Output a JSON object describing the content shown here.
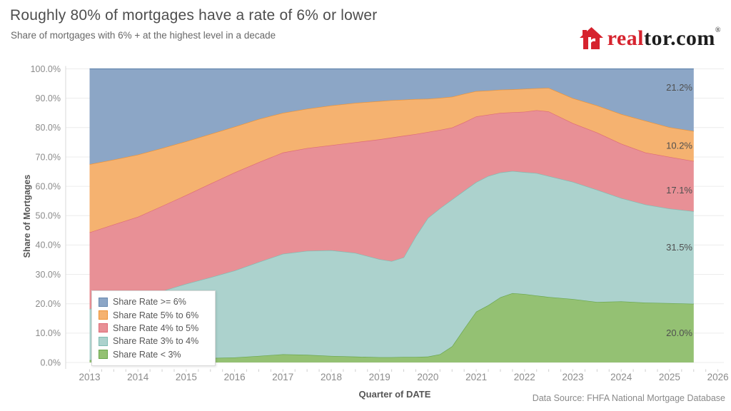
{
  "header": {
    "title": "Roughly 80% of mortgages have a rate of 6% or lower",
    "subtitle": "Share of mortgages with 6% + at the highest level in a decade",
    "logo": {
      "text_red": "real",
      "text_dark": "tor.com",
      "registered_mark": "®",
      "brand_red": "#d6232e",
      "house_icon": "red house glyph"
    }
  },
  "chart_data": {
    "type": "area",
    "stacked": "percent",
    "title": "Roughly 80% of mortgages have a rate of 6% or lower",
    "subtitle": "Share of mortgages with 6% + at the highest level in a decade",
    "xlabel": "Quarter of DATE",
    "ylabel": "Share of Mortgages",
    "ylim": [
      0,
      100
    ],
    "ytick_step": 10,
    "ytick_suffix": "%",
    "xticks": [
      2013,
      2014,
      2015,
      2016,
      2017,
      2018,
      2019,
      2020,
      2021,
      2022,
      2023,
      2024,
      2025,
      2026
    ],
    "grid": "horizontal",
    "legend_position": "bottom-left-overlay",
    "legend": [
      "Share Rate >= 6%",
      "Share Rate 5% to 6%",
      "Share Rate 4% to 5%",
      "Share Rate 3% to 4%",
      "Share Rate < 3%"
    ],
    "x": [
      2013,
      2013.5,
      2014,
      2014.5,
      2015,
      2015.5,
      2016,
      2016.5,
      2017,
      2017.5,
      2018,
      2018.5,
      2019,
      2019.25,
      2019.5,
      2019.75,
      2020,
      2020.25,
      2020.5,
      2020.75,
      2021,
      2021.25,
      2021.5,
      2021.75,
      2022,
      2022.25,
      2022.5,
      2023,
      2023.5,
      2024,
      2024.5,
      2025,
      2025.5
    ],
    "series": [
      {
        "name": "Share Rate < 3%",
        "color": "#94c173",
        "border": "#68a64d",
        "values": [
          0.8,
          0.9,
          1.0,
          1.2,
          1.4,
          1.5,
          1.7,
          2.2,
          2.8,
          2.6,
          2.2,
          2.0,
          1.8,
          1.8,
          1.9,
          1.9,
          2.0,
          2.8,
          5.5,
          11.5,
          17.3,
          19.5,
          22.2,
          23.6,
          23.3,
          22.8,
          22.3,
          21.6,
          20.6,
          20.8,
          20.4,
          20.2,
          20.0
        ]
      },
      {
        "name": "Share Rate 3% to 4%",
        "color": "#acd2cd",
        "border": "#7fbcb2",
        "values": [
          17.4,
          19.1,
          20.9,
          23.1,
          25.4,
          27.5,
          29.6,
          32.0,
          34.2,
          35.4,
          36.0,
          35.3,
          33.4,
          32.7,
          33.9,
          41.1,
          47.2,
          49.7,
          50.0,
          47.0,
          44.1,
          44.0,
          42.5,
          41.6,
          41.5,
          41.7,
          41.2,
          39.9,
          38.2,
          35.2,
          33.4,
          32.2,
          31.5
        ]
      },
      {
        "name": "Share Rate 4% to 5%",
        "color": "#e89096",
        "border": "#dd6b77",
        "values": [
          26.1,
          27.0,
          27.7,
          29.0,
          30.2,
          31.9,
          33.4,
          34.0,
          34.5,
          35.0,
          35.8,
          37.7,
          40.8,
          42.1,
          41.4,
          34.8,
          29.3,
          26.7,
          24.5,
          23.3,
          22.4,
          20.9,
          20.3,
          20.0,
          20.6,
          21.4,
          22.0,
          20.0,
          19.5,
          18.5,
          17.7,
          17.6,
          17.1
        ]
      },
      {
        "name": "Share Rate 5% to 6%",
        "color": "#f5b270",
        "border": "#ee9233",
        "values": [
          23.2,
          22.1,
          21.2,
          19.7,
          18.3,
          16.9,
          15.6,
          14.7,
          13.5,
          13.4,
          13.5,
          13.4,
          13.0,
          12.7,
          12.3,
          11.9,
          11.3,
          10.9,
          10.5,
          9.7,
          8.6,
          8.2,
          7.9,
          7.8,
          7.8,
          7.5,
          8.0,
          8.5,
          9.2,
          10.1,
          10.8,
          10.1,
          10.2
        ]
      },
      {
        "name": "Share Rate >= 6%",
        "color": "#8ca6c6",
        "border": "#66followed89b0",
        "values": [
          32.5,
          30.9,
          29.2,
          27.0,
          24.7,
          22.2,
          19.7,
          17.1,
          15.0,
          13.6,
          12.5,
          11.6,
          11.0,
          10.7,
          10.5,
          10.3,
          10.2,
          9.9,
          9.5,
          8.5,
          7.6,
          7.4,
          7.1,
          7.0,
          6.8,
          6.6,
          6.5,
          10.0,
          12.5,
          15.4,
          17.7,
          19.9,
          21.2
        ]
      }
    ],
    "end_labels": [
      {
        "series": "Share Rate >= 6%",
        "text": "21.2%"
      },
      {
        "series": "Share Rate 5% to 6%",
        "text": "10.2%"
      },
      {
        "series": "Share Rate 4% to 5%",
        "text": "17.1%"
      },
      {
        "series": "Share Rate 3% to 4%",
        "text": "31.5%"
      },
      {
        "series": "Share Rate < 3%",
        "text": "20.0%"
      }
    ]
  },
  "footer": {
    "data_source": "Data Source: FHFA National Mortgage Database"
  }
}
